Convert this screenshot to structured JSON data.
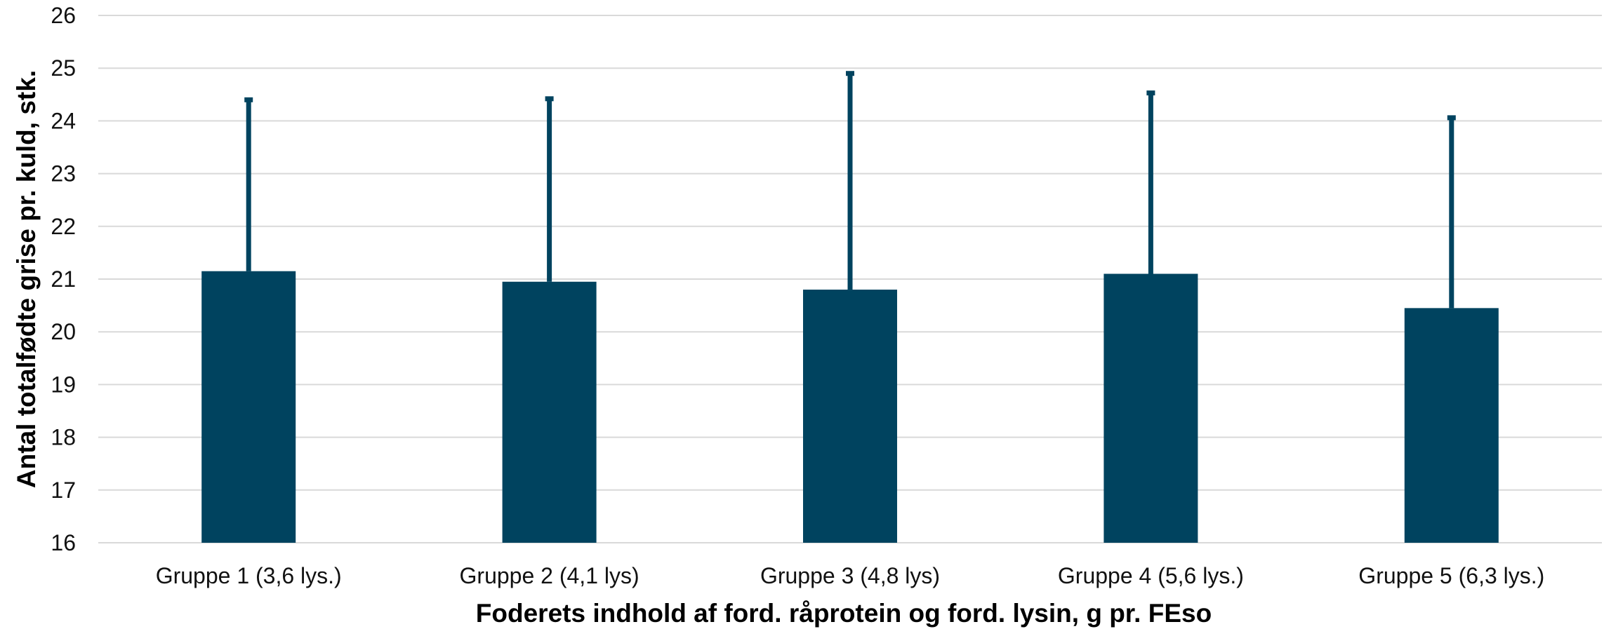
{
  "chart_data": {
    "type": "bar",
    "title": "",
    "xlabel": "Foderets indhold af ford. råprotein og ford. lysin, g pr. FEso",
    "ylabel": "Antal totalfødte grise pr. kuld, stk.",
    "categories": [
      "Gruppe 1 (3,6 lys.)",
      "Gruppe 2 (4,1 lys)",
      "Gruppe 3 (4,8 lys)",
      "Gruppe 4 (5,6 lys.)",
      "Gruppe 5 (6,3 lys.)"
    ],
    "values": [
      21.15,
      20.95,
      20.8,
      21.1,
      20.45
    ],
    "error_upper": [
      24.4,
      24.42,
      24.9,
      24.53,
      24.06
    ],
    "ylim": [
      16,
      26
    ],
    "yticks": [
      "16",
      "17",
      "18",
      "19",
      "20",
      "21",
      "22",
      "23",
      "24",
      "25",
      "26"
    ],
    "grid": true,
    "legend": "none",
    "colors": {
      "bar": "#00435f",
      "error_bar": "#00435f",
      "grid": "#d9d9d9"
    }
  }
}
